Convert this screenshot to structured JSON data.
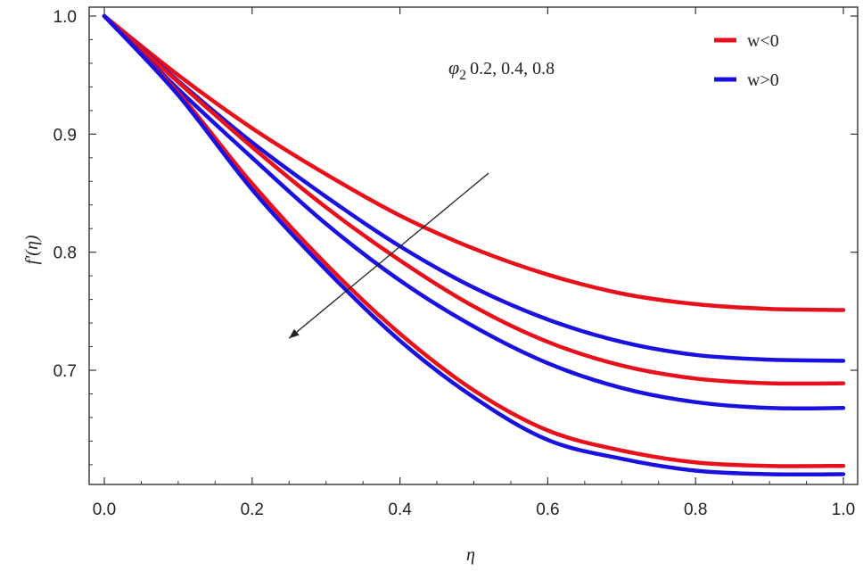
{
  "chart_data": {
    "type": "line",
    "xlabel": "η",
    "ylabel": "f'(η)",
    "xlim": [
      0,
      1
    ],
    "ylim": [
      0.61,
      1.0
    ],
    "x_ticks": [
      "0.0",
      "0.2",
      "0.4",
      "0.6",
      "0.8",
      "1.0"
    ],
    "y_ticks": [
      "0.7",
      "0.8",
      "0.9",
      "1.0"
    ],
    "grid": false,
    "legend_position": "top-right",
    "legend": [
      {
        "label": "w<0",
        "color": "#e8101a"
      },
      {
        "label": "w>0",
        "color": "#1a10e0"
      }
    ],
    "annotation": {
      "symbol": "φ",
      "subscript": "2",
      "values_text": "0.2,  0.4,  0.8"
    },
    "x": [
      0,
      0.1,
      0.2,
      0.3,
      0.4,
      0.5,
      0.6,
      0.7,
      0.8,
      0.9,
      1.0
    ],
    "series": [
      {
        "group": "w<0",
        "color": "#e8101a",
        "values": [
          1.0,
          0.95,
          0.905,
          0.866,
          0.831,
          0.803,
          0.781,
          0.765,
          0.756,
          0.752,
          0.751
        ]
      },
      {
        "group": "w>0",
        "color": "#1a10e0",
        "values": [
          1.0,
          0.945,
          0.893,
          0.847,
          0.805,
          0.77,
          0.743,
          0.724,
          0.713,
          0.709,
          0.708
        ]
      },
      {
        "group": "w<0",
        "color": "#e8101a",
        "values": [
          1.0,
          0.944,
          0.889,
          0.838,
          0.793,
          0.754,
          0.724,
          0.704,
          0.693,
          0.689,
          0.689
        ]
      },
      {
        "group": "w>0",
        "color": "#1a10e0",
        "values": [
          1.0,
          0.938,
          0.88,
          0.824,
          0.776,
          0.737,
          0.706,
          0.685,
          0.673,
          0.668,
          0.668
        ]
      },
      {
        "group": "w<0",
        "color": "#e8101a",
        "values": [
          1.0,
          0.935,
          0.858,
          0.79,
          0.731,
          0.683,
          0.649,
          0.632,
          0.622,
          0.619,
          0.619
        ]
      },
      {
        "group": "w>0",
        "color": "#1a10e0",
        "values": [
          1.0,
          0.933,
          0.853,
          0.785,
          0.725,
          0.677,
          0.641,
          0.625,
          0.615,
          0.612,
          0.612
        ]
      }
    ],
    "arrow": {
      "from": [
        0.25,
        0.727
      ],
      "to": [
        0.52,
        0.867
      ]
    }
  }
}
